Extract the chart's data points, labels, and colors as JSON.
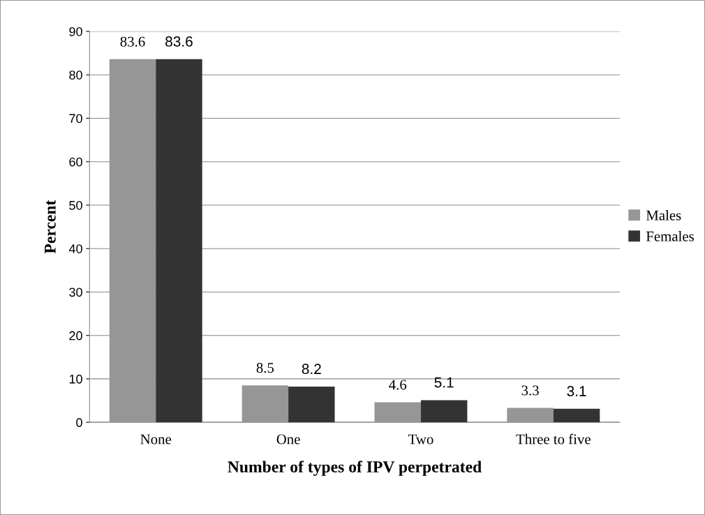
{
  "chart_data": {
    "type": "bar",
    "xlabel": "Number of types of IPV perpetrated",
    "ylabel": "Percent",
    "categories": [
      "None",
      "One",
      "Two",
      "Three to five"
    ],
    "series": [
      {
        "name": "Males",
        "color": "#969696",
        "values": [
          83.6,
          8.5,
          4.6,
          3.3
        ]
      },
      {
        "name": "Females",
        "color": "#333333",
        "values": [
          83.6,
          8.2,
          5.1,
          3.1
        ]
      }
    ],
    "ylim": [
      0,
      90
    ],
    "yticks": [
      0,
      10,
      20,
      30,
      40,
      50,
      60,
      70,
      80,
      90
    ],
    "grid": "y",
    "legend": "right",
    "data_labels": true
  }
}
